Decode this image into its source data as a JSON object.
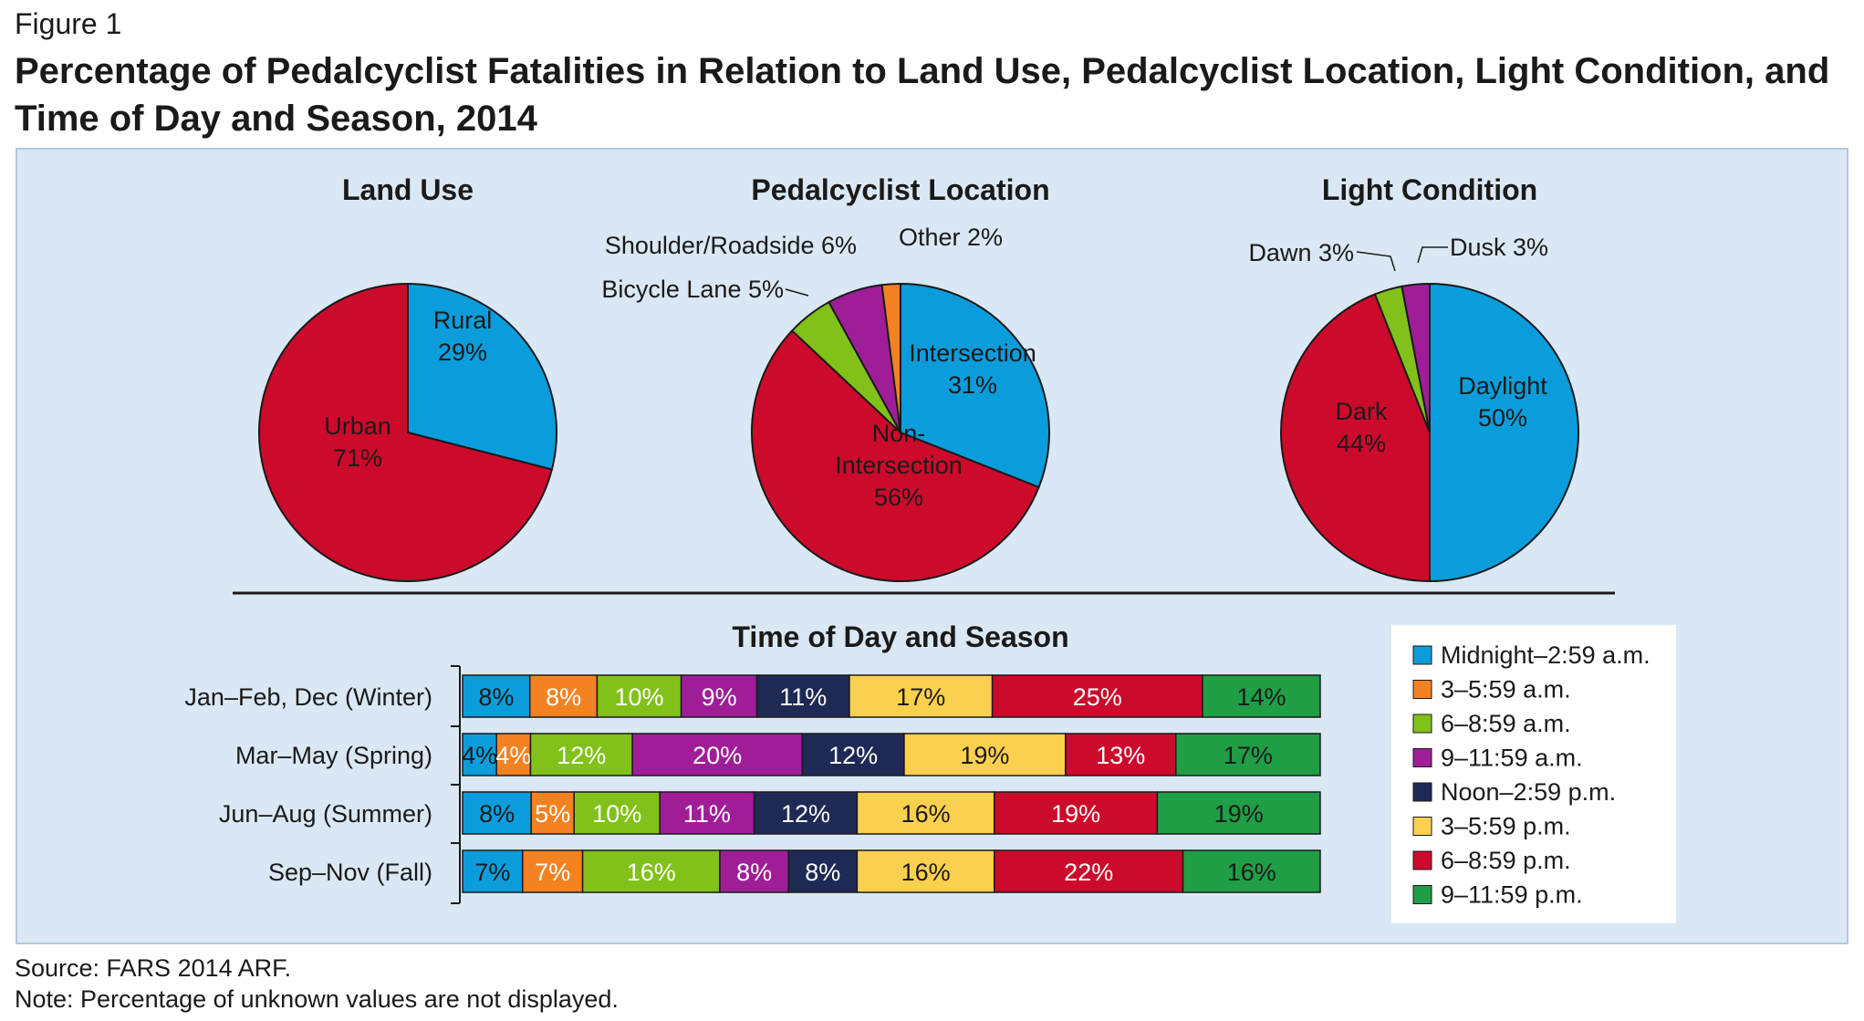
{
  "figure_label": "Figure 1",
  "title": "Percentage of Pedalcyclist Fatalities in Relation to Land Use, Pedalcyclist Location, Light Condition, and Time of Day and Season, 2014",
  "source": "Source: FARS 2014 ARF.",
  "note": "Note: Percentage of unknown values are not displayed.",
  "colors": {
    "blue": "#0b9ddb",
    "red": "#cc0a2b",
    "green": "#82c11a",
    "purple": "#9f1e98",
    "orange": "#f58220",
    "navy": "#1e2a55",
    "yellow": "#fcd04f",
    "darkgreen": "#1f9e46",
    "panel": "#d9e8f4"
  },
  "chart_data": [
    {
      "type": "pie",
      "title": "Land Use",
      "slices": [
        {
          "label": "Rural",
          "value": 29,
          "display": "29%",
          "color": "blue"
        },
        {
          "label": "Urban",
          "value": 71,
          "display": "71%",
          "color": "red"
        }
      ]
    },
    {
      "type": "pie",
      "title": "Pedalcyclist Location",
      "slices": [
        {
          "label": "Intersection",
          "value": 31,
          "display": "31%",
          "color": "blue"
        },
        {
          "label": "Non-Intersection",
          "value": 56,
          "display": "56%",
          "color": "red"
        },
        {
          "label": "Bicycle Lane",
          "value": 5,
          "display": "5%",
          "color": "green"
        },
        {
          "label": "Shoulder/Roadside",
          "value": 6,
          "display": "6%",
          "color": "purple"
        },
        {
          "label": "Other",
          "value": 2,
          "display": "2%",
          "color": "orange"
        }
      ]
    },
    {
      "type": "pie",
      "title": "Light Condition",
      "slices": [
        {
          "label": "Daylight",
          "value": 50,
          "display": "50%",
          "color": "blue"
        },
        {
          "label": "Dark",
          "value": 44,
          "display": "44%",
          "color": "red"
        },
        {
          "label": "Dawn",
          "value": 3,
          "display": "3%",
          "color": "green"
        },
        {
          "label": "Dusk",
          "value": 3,
          "display": "3%",
          "color": "purple"
        }
      ]
    },
    {
      "type": "bar",
      "orientation": "horizontal",
      "stacked": true,
      "title": "Time of Day and Season",
      "categories": [
        "Jan–Feb, Dec (Winter)",
        "Mar–May (Spring)",
        "Jun–Aug (Summer)",
        "Sep–Nov (Fall)"
      ],
      "series": [
        {
          "name": "Midnight–2:59 a.m.",
          "color": "blue",
          "values": [
            8,
            4,
            8,
            7
          ]
        },
        {
          "name": "3–5:59 a.m.",
          "color": "orange",
          "values": [
            8,
            4,
            5,
            7
          ]
        },
        {
          "name": "6–8:59 a.m.",
          "color": "green",
          "values": [
            10,
            12,
            10,
            16
          ]
        },
        {
          "name": "9–11:59 a.m.",
          "color": "purple",
          "values": [
            9,
            20,
            11,
            8
          ]
        },
        {
          "name": "Noon–2:59 p.m.",
          "color": "navy",
          "values": [
            11,
            12,
            12,
            8
          ]
        },
        {
          "name": "3–5:59 p.m.",
          "color": "yellow",
          "values": [
            17,
            19,
            16,
            16
          ]
        },
        {
          "name": "6–8:59 p.m.",
          "color": "red",
          "values": [
            25,
            13,
            19,
            22
          ]
        },
        {
          "name": "9–11:59 p.m.",
          "color": "darkgreen",
          "values": [
            14,
            17,
            19,
            16
          ]
        }
      ],
      "legend_position": "right"
    }
  ]
}
